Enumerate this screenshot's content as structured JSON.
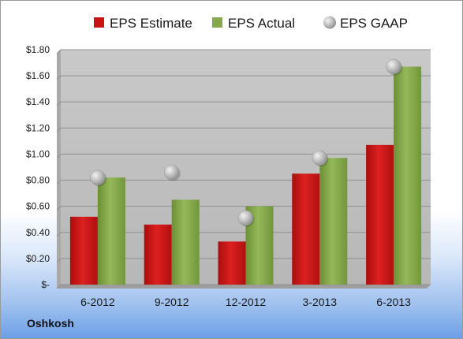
{
  "company": "Oshkosh",
  "chart_data": {
    "type": "bar",
    "categories": [
      "6-2012",
      "9-2012",
      "12-2012",
      "3-2013",
      "6-2013"
    ],
    "series": [
      {
        "name": "EPS Estimate",
        "kind": "bar",
        "color": "#c81414",
        "values": [
          0.52,
          0.46,
          0.33,
          0.85,
          1.07
        ]
      },
      {
        "name": "EPS Actual",
        "kind": "bar",
        "color": "#84a84a",
        "values": [
          0.82,
          0.65,
          0.6,
          0.97,
          1.67
        ]
      },
      {
        "name": "EPS GAAP",
        "kind": "marker",
        "color": "#b3b3b3",
        "values": [
          0.82,
          0.86,
          0.51,
          0.97,
          1.67
        ]
      }
    ],
    "ylim": [
      0,
      1.8
    ],
    "yticks": [
      0,
      0.2,
      0.4,
      0.6,
      0.8,
      1.0,
      1.2,
      1.4,
      1.6,
      1.8
    ],
    "ytick_labels": [
      "$-",
      "$0.20",
      "$0.40",
      "$0.60",
      "$0.80",
      "$1.00",
      "$1.20",
      "$1.40",
      "$1.60",
      "$1.80"
    ],
    "grid": true,
    "legend_position": "top"
  }
}
